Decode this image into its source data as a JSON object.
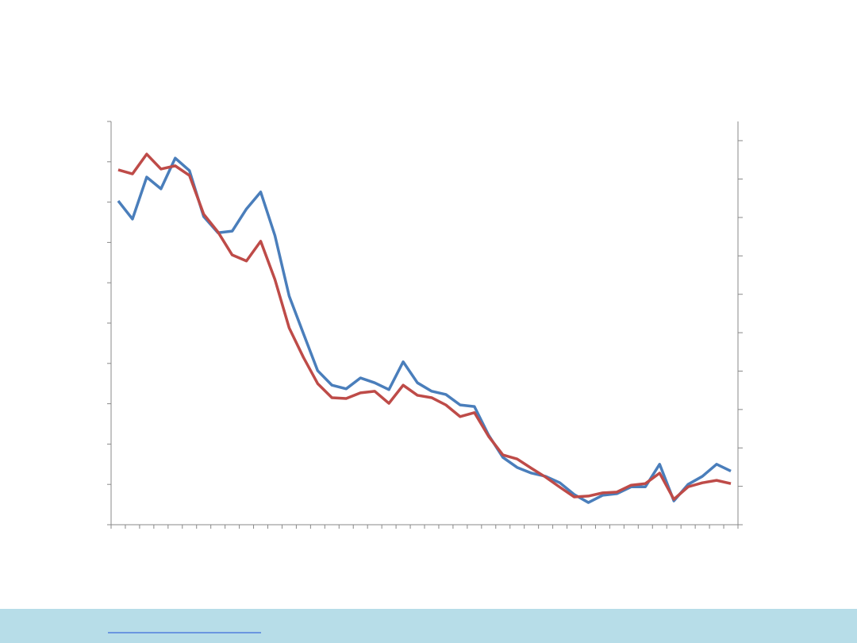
{
  "chart_data": {
    "type": "line",
    "categories": [
      null,
      null,
      null,
      null,
      null,
      null,
      null,
      null,
      null,
      null,
      null,
      null,
      null,
      null,
      null,
      null,
      null,
      null,
      null,
      null,
      null,
      null,
      null,
      null,
      null,
      null,
      null,
      null,
      null,
      null,
      null,
      null,
      null,
      null,
      null,
      null,
      null,
      null,
      null,
      null,
      null,
      null,
      null,
      null
    ],
    "series": [
      {
        "color": "#4a7ebb",
        "values": [
          8.03,
          7.58,
          8.62,
          8.33,
          9.09,
          8.78,
          7.64,
          7.24,
          7.28,
          7.83,
          8.25,
          7.17,
          5.67,
          4.74,
          3.82,
          3.46,
          3.37,
          3.64,
          3.52,
          3.35,
          4.04,
          3.52,
          3.31,
          3.23,
          2.97,
          2.93,
          2.22,
          1.67,
          1.42,
          1.28,
          1.2,
          1.04,
          0.75,
          0.55,
          0.73,
          0.77,
          0.94,
          0.94,
          1.5,
          0.59,
          1.0,
          1.2,
          1.5,
          1.33
        ]
      },
      {
        "color": "#be4b48",
        "values": [
          8.8,
          8.7,
          9.19,
          8.82,
          8.9,
          8.66,
          7.7,
          7.26,
          6.69,
          6.54,
          7.03,
          6.08,
          4.88,
          4.15,
          3.5,
          3.15,
          3.13,
          3.27,
          3.31,
          3.01,
          3.46,
          3.21,
          3.15,
          2.97,
          2.68,
          2.78,
          2.19,
          1.73,
          1.63,
          1.4,
          1.18,
          0.93,
          0.69,
          0.71,
          0.79,
          0.81,
          0.98,
          1.02,
          1.28,
          0.63,
          0.94,
          1.04,
          1.1,
          1.02
        ]
      }
    ],
    "ylim": [
      0,
      10
    ],
    "yticks": [
      0,
      1,
      2,
      3,
      4,
      5,
      6,
      7,
      8,
      9,
      10
    ],
    "y2lim": [
      0,
      10.5
    ],
    "y2ticks": [
      0,
      1,
      2,
      3,
      4,
      5,
      6,
      7,
      8,
      9,
      10
    ],
    "grid": false
  }
}
